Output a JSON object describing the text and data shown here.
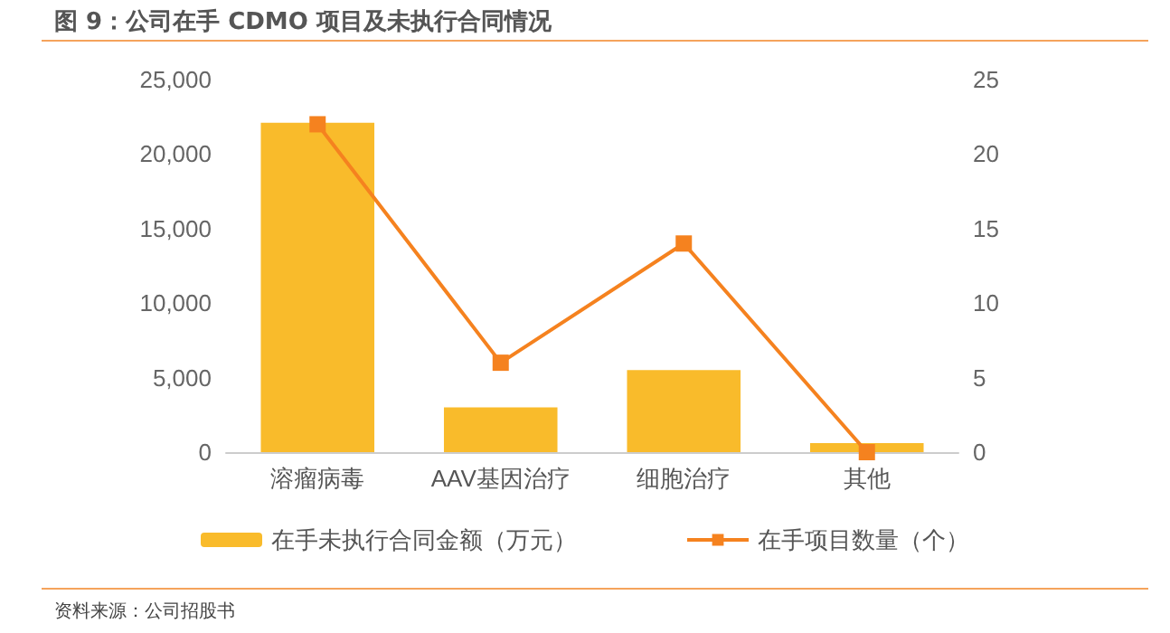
{
  "chart_data": {
    "type": "bar",
    "title": "图 9：公司在手 CDMO 项目及未执行合同情况",
    "categories": [
      "溶瘤病毒",
      "AAV基因治疗",
      "细胞治疗",
      "其他"
    ],
    "series": [
      {
        "name": "在手未执行合同金额（万元）",
        "color": "#f9bb2b",
        "values": [
          22100,
          3000,
          5500,
          600
        ]
      },
      {
        "name": "在手项目数量（个）",
        "type": "line",
        "axis": "y2",
        "color": "#f5821f",
        "values": [
          22,
          6,
          14,
          0
        ]
      }
    ],
    "ylim": [
      0,
      25000
    ],
    "yticks": [
      0,
      {
        "value": 5000,
        "label": "5,000"
      },
      {
        "value": 10000,
        "label": "10,000"
      },
      {
        "value": 15000,
        "label": "15,000"
      },
      {
        "value": 20000,
        "label": "20,000"
      },
      {
        "value": 25000,
        "label": "25,000"
      }
    ],
    "y2lim": [
      0,
      25
    ],
    "y2ticks": [
      0,
      5,
      10,
      15,
      20,
      25
    ],
    "grid": false,
    "legend": "bottom",
    "marker": "square",
    "line_style": "solid",
    "annotations": [
      "资料来源：公司招股书"
    ]
  }
}
